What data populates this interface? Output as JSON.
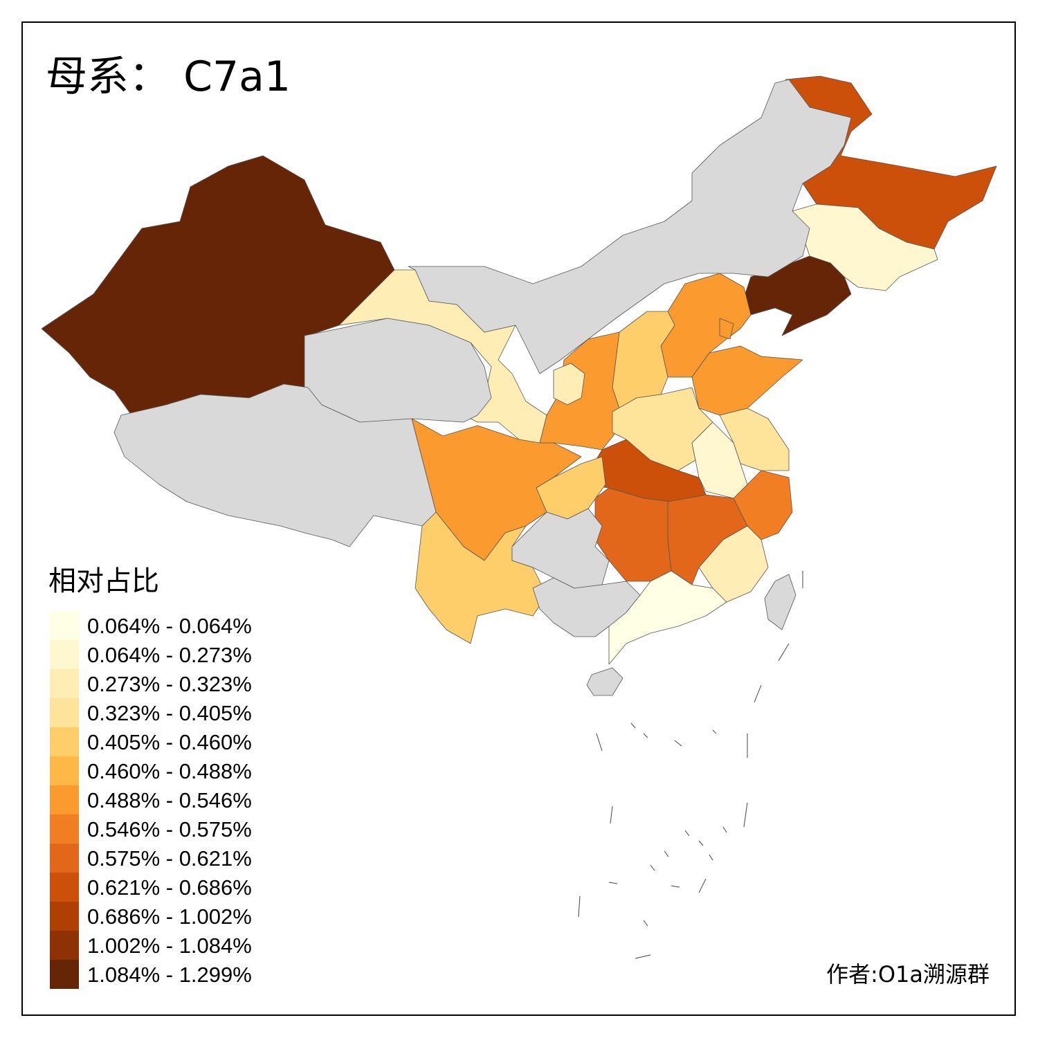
{
  "title": "母系： C7a1",
  "legend": {
    "title": "相对占比",
    "classes": [
      {
        "label": "0.064% - 0.064%",
        "color": "#ffffe5"
      },
      {
        "label": "0.064% - 0.273%",
        "color": "#fff7cf"
      },
      {
        "label": "0.273% - 0.323%",
        "color": "#feeeb5"
      },
      {
        "label": "0.323% - 0.405%",
        "color": "#fee39a"
      },
      {
        "label": "0.405% - 0.460%",
        "color": "#fece6b"
      },
      {
        "label": "0.460% - 0.488%",
        "color": "#fdb848"
      },
      {
        "label": "0.488% - 0.546%",
        "color": "#fb9a2e"
      },
      {
        "label": "0.546% - 0.575%",
        "color": "#f17e22"
      },
      {
        "label": "0.575% - 0.621%",
        "color": "#e2671a"
      },
      {
        "label": "0.621% - 0.686%",
        "color": "#cc4f0a"
      },
      {
        "label": "0.686% - 1.002%",
        "color": "#b03f05"
      },
      {
        "label": "1.002% - 1.084%",
        "color": "#8e3105"
      },
      {
        "label": "1.084% - 1.299%",
        "color": "#662506"
      }
    ]
  },
  "no_data_color": "#d9d9d9",
  "author": "作者:O1a溯源群",
  "chart_data": {
    "type": "choropleth",
    "title": "母系： C7a1",
    "legend_title": "相对占比",
    "legend_placement": "bottom-left",
    "regions": [
      {
        "region": "Xinjiang",
        "class": "1.084% - 1.299%"
      },
      {
        "region": "Liaoning",
        "class": "1.084% - 1.299%"
      },
      {
        "region": "Beijing",
        "class": "0.686% - 1.002%"
      },
      {
        "region": "Heilongjiang",
        "class": "0.621% - 0.686%"
      },
      {
        "region": "Hubei",
        "class": "0.621% - 0.686%"
      },
      {
        "region": "Hunan",
        "class": "0.575% - 0.621%"
      },
      {
        "region": "Jiangxi",
        "class": "0.575% - 0.621%"
      },
      {
        "region": "Zhejiang",
        "class": "0.546% - 0.575%"
      },
      {
        "region": "Sichuan",
        "class": "0.488% - 0.546%"
      },
      {
        "region": "Shaanxi",
        "class": "0.488% - 0.546%"
      },
      {
        "region": "Hebei",
        "class": "0.488% - 0.546%"
      },
      {
        "region": "Shandong",
        "class": "0.488% - 0.546%"
      },
      {
        "region": "Tianjin",
        "class": "0.488% - 0.546%"
      },
      {
        "region": "Yunnan",
        "class": "0.405% - 0.460%"
      },
      {
        "region": "Chongqing",
        "class": "0.405% - 0.460%"
      },
      {
        "region": "Shanxi",
        "class": "0.405% - 0.460%"
      },
      {
        "region": "Henan",
        "class": "0.323% - 0.405%"
      },
      {
        "region": "Jiangsu",
        "class": "0.323% - 0.405%"
      },
      {
        "region": "Gansu",
        "class": "0.273% - 0.323%"
      },
      {
        "region": "Ningxia",
        "class": "0.273% - 0.323%"
      },
      {
        "region": "Fujian",
        "class": "0.273% - 0.323%"
      },
      {
        "region": "Jilin",
        "class": "0.064% - 0.273%"
      },
      {
        "region": "Anhui",
        "class": "0.064% - 0.273%"
      },
      {
        "region": "Guangdong",
        "class": "0.064% - 0.064%"
      },
      {
        "region": "Inner Mongolia",
        "class": "no data"
      },
      {
        "region": "Qinghai",
        "class": "no data"
      },
      {
        "region": "Tibet",
        "class": "no data"
      },
      {
        "region": "Guizhou",
        "class": "no data"
      },
      {
        "region": "Guangxi",
        "class": "no data"
      },
      {
        "region": "Hainan",
        "class": "no data"
      },
      {
        "region": "Taiwan",
        "class": "no data"
      }
    ]
  }
}
